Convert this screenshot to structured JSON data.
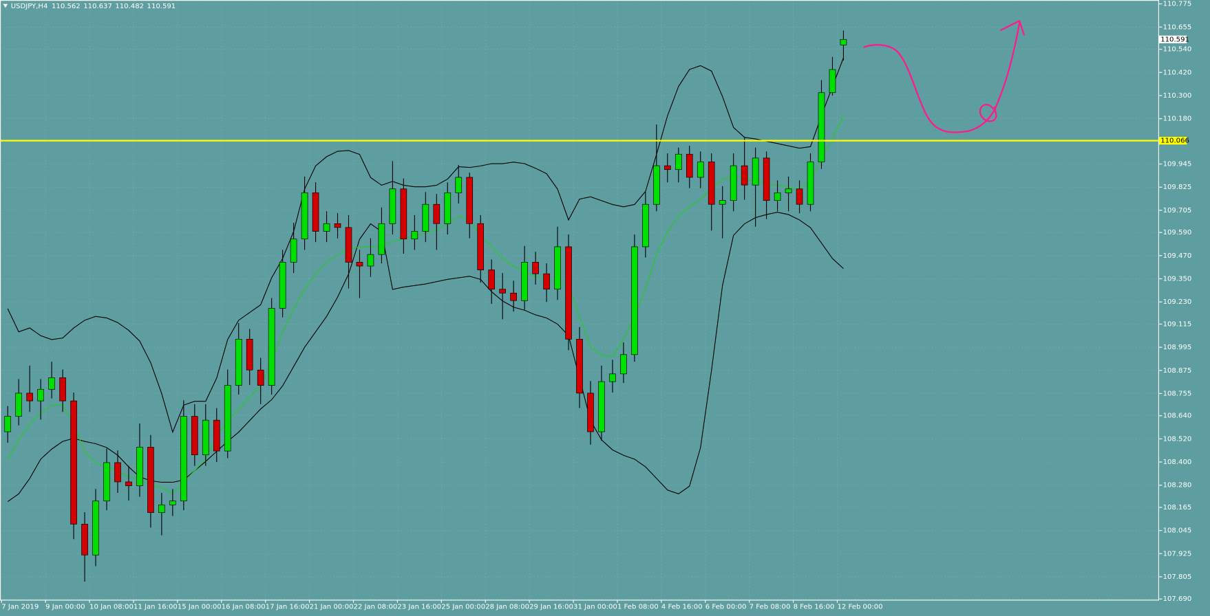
{
  "chart_data": {
    "type": "candlestick",
    "symbol": "USDJPY,H4",
    "background": "#5f9ea0",
    "up_color": "#00e000",
    "down_color": "#d40000",
    "wick_color": "#000000",
    "grid": true,
    "categories": [
      "7 Jan 2019",
      null,
      null,
      null,
      "9 Jan 00:00",
      null,
      null,
      null,
      "10 Jan 08:00",
      null,
      null,
      null,
      "11 Jan 16:00",
      null,
      null,
      null,
      "15 Jan 00:00",
      null,
      null,
      null,
      "16 Jan 08:00",
      null,
      null,
      null,
      "17 Jan 16:00",
      null,
      null,
      null,
      "21 Jan 00:00",
      null,
      null,
      null,
      "22 Jan 08:00",
      null,
      null,
      null,
      "23 Jan 16:00",
      null,
      null,
      null,
      "25 Jan 00:00",
      null,
      null,
      null,
      "28 Jan 08:00",
      null,
      null,
      null,
      "29 Jan 16:00",
      null,
      null,
      null,
      "31 Jan 00:00",
      null,
      null,
      null,
      "1 Feb 08:00",
      null,
      null,
      null,
      "4 Feb 16:00",
      null,
      null,
      null,
      "6 Feb 00:00",
      null,
      null,
      null,
      "7 Feb 08:00",
      null,
      null,
      null,
      "8 Feb 16:00",
      null,
      null,
      null,
      "12 Feb 00:00"
    ],
    "open": [
      108.557,
      108.637,
      108.757,
      108.717,
      108.777,
      108.837,
      108.717,
      108.078,
      107.918,
      108.198,
      108.397,
      108.297,
      108.277,
      108.477,
      108.138,
      108.178,
      108.198,
      108.637,
      108.437,
      108.617,
      108.457,
      108.797,
      109.037,
      108.877,
      108.797,
      109.197,
      109.436,
      109.556,
      109.796,
      109.596,
      109.636,
      109.616,
      109.436,
      109.416,
      109.476,
      109.636,
      109.816,
      109.556,
      109.596,
      109.736,
      109.636,
      109.796,
      109.876,
      109.636,
      109.396,
      109.296,
      109.276,
      109.237,
      109.436,
      109.376,
      109.296,
      109.516,
      109.037,
      108.757,
      108.557,
      108.817,
      108.857,
      108.957,
      109.516,
      109.736,
      109.936,
      109.916,
      109.996,
      109.876,
      109.956,
      109.736,
      109.756,
      109.936,
      109.836,
      109.976,
      109.756,
      109.796,
      109.816,
      109.736,
      109.956,
      110.315,
      110.562
    ],
    "high": [
      108.69,
      108.83,
      108.9,
      108.83,
      108.92,
      108.88,
      108.76,
      108.14,
      108.26,
      108.47,
      108.46,
      108.38,
      108.6,
      108.54,
      108.24,
      108.26,
      108.72,
      108.7,
      108.7,
      108.68,
      108.88,
      109.12,
      109.09,
      108.94,
      109.25,
      109.5,
      109.64,
      109.88,
      109.85,
      109.7,
      109.69,
      109.68,
      109.5,
      109.56,
      109.72,
      109.96,
      109.87,
      109.68,
      109.8,
      109.79,
      109.85,
      109.94,
      109.9,
      109.68,
      109.45,
      109.38,
      109.34,
      109.52,
      109.49,
      109.43,
      109.62,
      109.58,
      109.1,
      108.82,
      108.9,
      108.93,
      109.02,
      109.58,
      109.8,
      110.15,
      110,
      110.03,
      110.04,
      110.01,
      110,
      109.83,
      110,
      110.08,
      110.03,
      110.01,
      109.86,
      109.88,
      109.86,
      110,
      110.38,
      110.5,
      110.637
    ],
    "low": [
      108.5,
      108.59,
      108.66,
      108.62,
      108.73,
      108.66,
      108,
      107.78,
      107.86,
      108.15,
      108.24,
      108.2,
      108.22,
      108.06,
      108.02,
      108.12,
      108.15,
      108.38,
      108.38,
      108.4,
      108.42,
      108.75,
      108.8,
      108.7,
      108.75,
      109.15,
      109.38,
      109.5,
      109.54,
      109.54,
      109.56,
      109.3,
      109.25,
      109.36,
      109.43,
      109.58,
      109.48,
      109.5,
      109.54,
      109.5,
      109.58,
      109.74,
      109.56,
      109.33,
      109.22,
      109.14,
      109.18,
      109.19,
      109.32,
      109.23,
      109.24,
      108.98,
      108.68,
      108.49,
      108.51,
      108.76,
      108.81,
      108.92,
      109.46,
      109.7,
      109.85,
      109.85,
      109.82,
      109.82,
      109.6,
      109.56,
      109.7,
      109.76,
      109.62,
      109.66,
      109.7,
      109.7,
      109.69,
      109.7,
      109.92,
      110.3,
      110.482
    ],
    "close": [
      108.637,
      108.757,
      108.717,
      108.777,
      108.837,
      108.717,
      108.078,
      107.918,
      108.198,
      108.397,
      108.297,
      108.277,
      108.477,
      108.138,
      108.178,
      108.198,
      108.637,
      108.437,
      108.617,
      108.457,
      108.797,
      109.037,
      108.877,
      108.797,
      109.197,
      109.436,
      109.556,
      109.796,
      109.596,
      109.636,
      109.616,
      109.436,
      109.416,
      109.476,
      109.636,
      109.816,
      109.556,
      109.596,
      109.736,
      109.636,
      109.796,
      109.876,
      109.636,
      109.396,
      109.296,
      109.276,
      109.237,
      109.436,
      109.376,
      109.296,
      109.516,
      109.037,
      108.757,
      108.557,
      108.817,
      108.857,
      108.957,
      109.516,
      109.736,
      109.936,
      109.916,
      109.996,
      109.876,
      109.956,
      109.736,
      109.756,
      109.936,
      109.836,
      109.976,
      109.756,
      109.796,
      109.816,
      109.736,
      109.956,
      110.315,
      110.435,
      110.591
    ],
    "overlays": [
      {
        "color": "#000000",
        "values": [
          109.195,
          109.075,
          109.095,
          109.055,
          109.035,
          109.043,
          109.095,
          109.135,
          109.155,
          109.147,
          109.123,
          109.083,
          109.027,
          108.915,
          108.755,
          108.555,
          108.695,
          108.715,
          108.715,
          108.835,
          109.035,
          109.135,
          109.175,
          109.215,
          109.355,
          109.455,
          109.595,
          109.815,
          109.935,
          109.983,
          110.011,
          110.015,
          109.995,
          109.875,
          109.835,
          109.855,
          109.835,
          109.827,
          109.827,
          109.835,
          109.867,
          109.931,
          109.927,
          109.935,
          109.947,
          109.947,
          109.955,
          109.947,
          109.923,
          109.895,
          109.815,
          109.655,
          109.763,
          109.775,
          109.755,
          109.735,
          109.723,
          109.735,
          109.803,
          109.995,
          110.195,
          110.347,
          110.435,
          110.455,
          110.427,
          110.295,
          110.135,
          110.083,
          110.075,
          110.063,
          110.051,
          110.039,
          110.027,
          110.035,
          110.195,
          110.347,
          110.495
        ]
      },
      {
        "color": "#000000",
        "values": [
          108.195,
          108.235,
          108.315,
          108.415,
          108.467,
          108.507,
          108.523,
          108.507,
          108.495,
          108.475,
          108.435,
          108.375,
          108.323,
          108.303,
          108.295,
          108.295,
          108.307,
          108.355,
          108.403,
          108.455,
          108.507,
          108.555,
          108.615,
          108.675,
          108.723,
          108.795,
          108.895,
          108.995,
          109.075,
          109.155,
          109.255,
          109.375,
          109.555,
          109.635,
          109.595,
          109.295,
          109.307,
          109.315,
          109.323,
          109.335,
          109.347,
          109.355,
          109.363,
          109.347,
          109.283,
          109.235,
          109.203,
          109.187,
          109.163,
          109.147,
          109.115,
          109.055,
          108.835,
          108.615,
          108.515,
          108.463,
          108.435,
          108.415,
          108.375,
          108.315,
          108.255,
          108.235,
          108.275,
          108.475,
          108.875,
          109.315,
          109.575,
          109.635,
          109.667,
          109.683,
          109.695,
          109.683,
          109.655,
          109.615,
          109.535,
          109.455,
          109.403
        ]
      },
      {
        "color": "#22cc22",
        "values": [
          108.415,
          108.515,
          108.595,
          108.655,
          108.695,
          108.695,
          108.595,
          108.455,
          108.395,
          108.375,
          108.355,
          108.323,
          108.307,
          108.287,
          108.267,
          108.235,
          108.295,
          108.355,
          108.415,
          108.535,
          108.615,
          108.675,
          108.735,
          108.795,
          108.915,
          109.075,
          109.195,
          109.295,
          109.375,
          109.435,
          109.475,
          109.507,
          109.515,
          109.515,
          109.523,
          109.543,
          109.555,
          109.575,
          109.587,
          109.603,
          109.635,
          109.675,
          109.655,
          109.575,
          109.515,
          109.455,
          109.415,
          109.387,
          109.363,
          109.347,
          109.335,
          109.315,
          109.155,
          108.995,
          108.955,
          108.947,
          109.035,
          109.155,
          109.295,
          109.475,
          109.595,
          109.675,
          109.723,
          109.763,
          109.815,
          109.867,
          109.875,
          109.867,
          109.855,
          109.843,
          109.835,
          109.823,
          109.815,
          109.855,
          109.975,
          110.075,
          110.195
        ]
      }
    ],
    "hline": {
      "value": 110.066,
      "color": "#ffff00"
    },
    "ylim": [
      107.69,
      110.775
    ],
    "yticks": [
      110.775,
      110.655,
      {
        "value": 110.54,
        "label": "110.540"
      },
      {
        "value": 110.42,
        "label": "110.420"
      },
      {
        "value": 110.3,
        "label": "110.300"
      },
      {
        "value": 110.18,
        "label": "110.180"
      },
      109.945,
      109.825,
      109.705,
      {
        "value": 109.59,
        "label": "109.590"
      },
      {
        "value": 109.47,
        "label": "109.470"
      },
      {
        "value": 109.35,
        "label": "109.350"
      },
      {
        "value": 109.23,
        "label": "109.230"
      },
      109.115,
      108.995,
      108.875,
      108.755,
      {
        "value": 108.64,
        "label": "108.640"
      },
      {
        "value": 108.52,
        "label": "108.520"
      },
      {
        "value": 108.4,
        "label": "108.400"
      },
      {
        "value": 108.28,
        "label": "108.280"
      },
      108.165,
      108.045,
      107.925,
      107.805,
      {
        "value": 107.69,
        "label": "107.690"
      }
    ]
  }
}
